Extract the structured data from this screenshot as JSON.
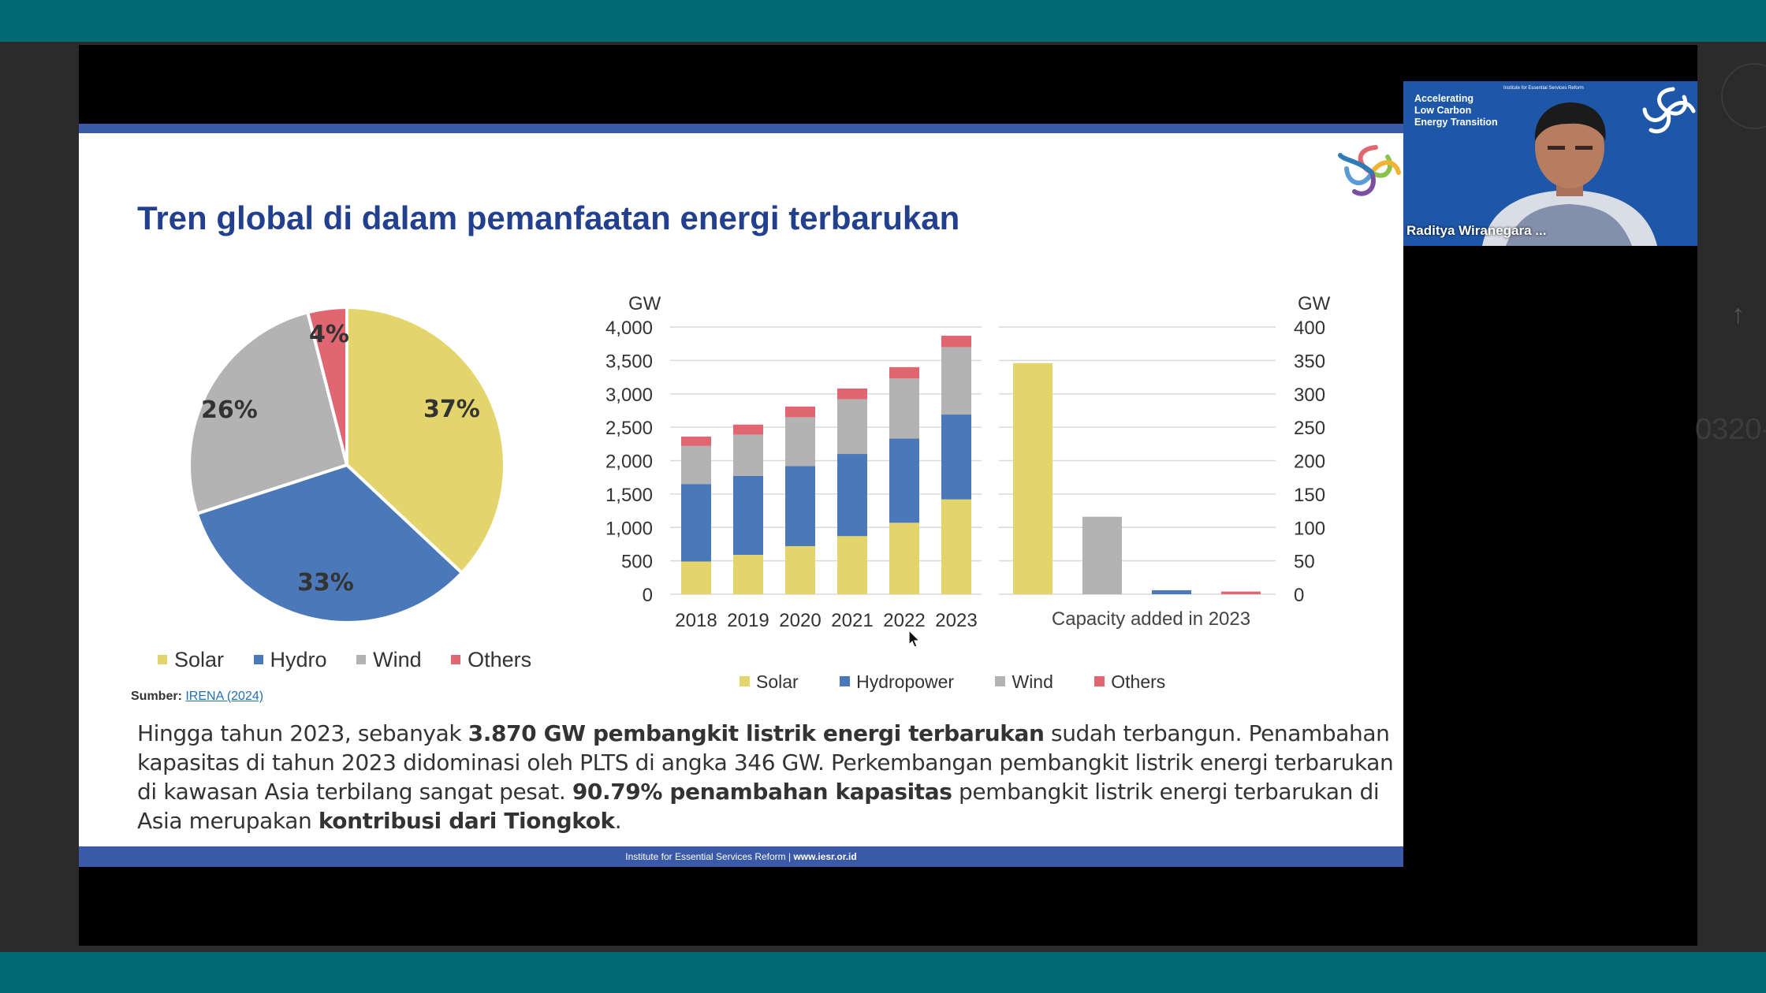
{
  "slide": {
    "title": "Tren global di dalam pemanfaatan energi terbarukan",
    "footer_org": "Institute for Essential Services Reform | ",
    "footer_url": "www.iesr.or.id",
    "source_label": "Sumber:",
    "source_link": "IRENA (2024)",
    "paragraph": {
      "p1": "Hingga tahun 2023, sebanyak ",
      "b1": "3.870 GW pembangkit listrik energi terbarukan",
      "p2": " sudah terbangun. Penambahan kapasitas di tahun 2023 didominasi oleh PLTS di angka 346 GW. Perkembangan pembangkit listrik energi terbarukan di kawasan Asia terbilang sangat pesat. ",
      "b2": "90.79% penambahan kapasitas",
      "p3": " pembangkit listrik energi terbarukan di Asia merupakan ",
      "b3": "kontribusi dari Tiongkok",
      "p4": "."
    }
  },
  "colors": {
    "solar": "#e3d56b",
    "hydro": "#4a78b8",
    "wind": "#b3b3b3",
    "others": "#e06672",
    "title": "#23408e",
    "band": "#3a5aa8",
    "teal": "#006a73"
  },
  "pie_legend": [
    "Solar",
    "Hydro",
    "Wind",
    "Others"
  ],
  "bar_legend": [
    "Solar",
    "Hydropower",
    "Wind",
    "Others"
  ],
  "chart_data": [
    {
      "type": "pie",
      "labels": [
        "Solar",
        "Hydro",
        "Wind",
        "Others"
      ],
      "values": [
        37,
        33,
        26,
        4
      ],
      "value_labels": [
        "37%",
        "33%",
        "26%",
        "4%"
      ]
    },
    {
      "type": "bar",
      "stacked": true,
      "categories": [
        "2018",
        "2019",
        "2020",
        "2021",
        "2022",
        "2023"
      ],
      "ylabel": "GW",
      "ylim": [
        0,
        4000
      ],
      "yticks": [
        "0",
        "500",
        "1,000",
        "1,500",
        "2,000",
        "2,500",
        "3,000",
        "3,500",
        "4,000"
      ],
      "series": [
        {
          "name": "Solar",
          "values": [
            490,
            590,
            720,
            870,
            1070,
            1420
          ]
        },
        {
          "name": "Hydropower",
          "values": [
            1160,
            1180,
            1200,
            1230,
            1260,
            1270
          ]
        },
        {
          "name": "Wind",
          "values": [
            570,
            620,
            730,
            820,
            900,
            1010
          ]
        },
        {
          "name": "Others",
          "values": [
            140,
            150,
            160,
            160,
            170,
            170
          ]
        }
      ],
      "grid": true
    },
    {
      "type": "bar",
      "xlabel": "Capacity added in 2023",
      "ylabel": "GW",
      "ylim": [
        0,
        400
      ],
      "yticks": [
        "0",
        "50",
        "100",
        "150",
        "200",
        "250",
        "300",
        "350",
        "400"
      ],
      "categories": [
        "Solar",
        "Wind",
        "Hydropower",
        "Others"
      ],
      "values": [
        346,
        116,
        6,
        4
      ],
      "grid": true
    }
  ],
  "webcam": {
    "title_line1": "Accelerating",
    "title_line2": "Low Carbon",
    "title_line3": "Energy Transition",
    "org": "Institute for Essential Services Reform",
    "participant_name": "Raditya Wiranegara ..."
  },
  "side": {
    "partial_number": "0320-",
    "up_arrow": "↑"
  }
}
